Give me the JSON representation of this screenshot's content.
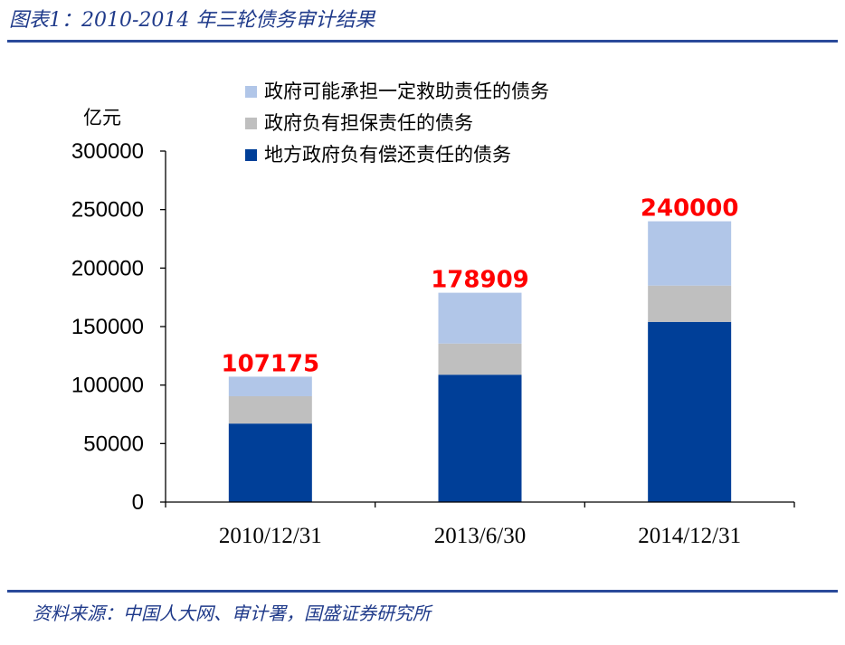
{
  "figure": {
    "title": "图表1：2010-2014 年三轮债务审计结果",
    "source": "资料来源：中国人大网、审计署，国盛证券研究所"
  },
  "chart_data": {
    "type": "bar",
    "stacked": true,
    "ylabel": "亿元",
    "ylim": [
      0,
      300000
    ],
    "yticks": [
      0,
      50000,
      100000,
      150000,
      200000,
      250000,
      300000
    ],
    "categories": [
      "2010/12/31",
      "2013/6/30",
      "2014/12/31"
    ],
    "series": [
      {
        "name": "地方政府负有偿还责任的债务",
        "color": "#003f98",
        "values": [
          67109,
          108859,
          154000
        ]
      },
      {
        "name": "政府负有担保责任的债务",
        "color": "#bfbfbf",
        "values": [
          23369,
          26656,
          31000
        ]
      },
      {
        "name": "政府可能承担一定救助责任的债务",
        "color": "#b1c6e8",
        "values": [
          16697,
          43394,
          55000
        ]
      }
    ],
    "totals": [
      107175,
      178909,
      240000
    ],
    "total_label_color": "#ff0000",
    "legend_position": "top-center",
    "grid": false
  }
}
